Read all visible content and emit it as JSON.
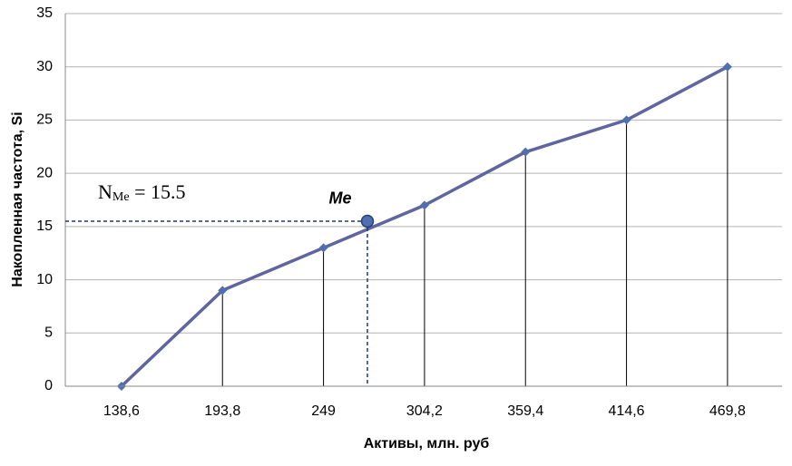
{
  "chart_data": {
    "type": "line",
    "x_label": "Активы, млн. руб",
    "y_label": "Накопленная частота, Si",
    "x": [
      138.6,
      193.8,
      249,
      304.2,
      359.4,
      414.6,
      469.8
    ],
    "series": [
      {
        "color": "#5f669f",
        "marker_color": "#4f6fb0",
        "values": [
          0,
          9,
          13,
          17,
          22,
          25,
          30
        ]
      }
    ],
    "xlim": [
      107.9,
      499.6
    ],
    "xticks": [
      {
        "value": 138.6,
        "label": "138,6"
      },
      {
        "value": 193.8,
        "label": "193,8"
      },
      {
        "value": 249,
        "label": "249"
      },
      {
        "value": 304.2,
        "label": "304,2"
      },
      {
        "value": 359.4,
        "label": "359,4"
      },
      {
        "value": 414.6,
        "label": "414,6"
      },
      {
        "value": 469.8,
        "label": "469,8"
      }
    ],
    "ylim": [
      0,
      35
    ],
    "yticks": [
      0,
      5,
      10,
      15,
      20,
      25,
      30,
      35
    ],
    "grid": true,
    "drop_lines": true,
    "median": {
      "label": "Me",
      "x": 273,
      "y": 15.5,
      "color": "#1f3a6e"
    },
    "median_annotation": {
      "main": "N",
      "sub": "Me",
      "rest": " = 15.5"
    }
  }
}
